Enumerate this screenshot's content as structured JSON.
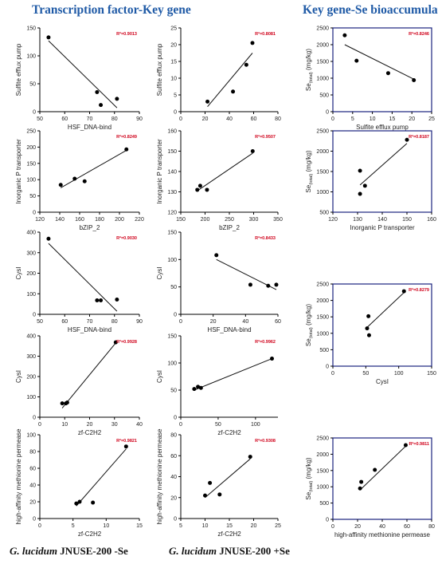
{
  "header": {
    "left_title": "Transcription factor-Key gene",
    "right_title": "Key gene-Se bioaccumulation"
  },
  "footer": {
    "left_species": "G. lucidum",
    "left_strain": "JNUSE-200",
    "left_treatment": "-Se",
    "right_species": "G. lucidum",
    "right_strain": "JNUSE-200",
    "right_treatment": "+Se"
  },
  "colors": {
    "header": "#1f5aa6",
    "r2": "#d0021b",
    "right_frame": "#1a237e",
    "axis": "#000000"
  },
  "chart_data": [
    {
      "id": "r1c1",
      "type": "scatter",
      "r2_text": "R²=0.9013",
      "xlabel": "HSF_DNA-bind",
      "ylabel": "Sulfite efflux pump",
      "xlim": [
        50,
        90
      ],
      "ylim": [
        0,
        150
      ],
      "xticks": [
        50,
        60,
        70,
        80,
        90
      ],
      "yticks": [
        0,
        50,
        100,
        150
      ],
      "x": [
        53.5,
        73,
        74.5,
        81
      ],
      "y": [
        133,
        35,
        12,
        23
      ],
      "fit": [
        [
          53.5,
          127
        ],
        [
          81,
          7
        ]
      ]
    },
    {
      "id": "r1c2",
      "type": "scatter",
      "r2_text": "R²=0.8081",
      "xlabel": "",
      "ylabel": "Sulfite efflux pump",
      "xlim": [
        0,
        80
      ],
      "ylim": [
        0,
        25
      ],
      "xticks": [
        0,
        20,
        40,
        60,
        80
      ],
      "yticks": [
        0,
        5,
        10,
        15,
        20,
        25
      ],
      "x": [
        22,
        43,
        54,
        59
      ],
      "y": [
        3,
        6,
        14,
        20.5
      ],
      "fit": [
        [
          22,
          1.5
        ],
        [
          59,
          17.5
        ]
      ]
    },
    {
      "id": "r1c3",
      "type": "scatter",
      "r2_text": "R²=0.8246",
      "xlabel": "Sulfite efflux pump",
      "ylabel": "Se(total) (mg/kg)",
      "xlim": [
        0,
        25
      ],
      "ylim": [
        0,
        2500
      ],
      "xticks": [
        0,
        5,
        10,
        15,
        20,
        25
      ],
      "yticks": [
        0,
        500,
        1000,
        1500,
        2000,
        2500
      ],
      "x": [
        3,
        6,
        14,
        20.5
      ],
      "y": [
        2280,
        1520,
        1150,
        940
      ],
      "fit": [
        [
          3,
          2000
        ],
        [
          20.5,
          970
        ]
      ]
    },
    {
      "id": "r2c1",
      "type": "scatter",
      "r2_text": "R²=0.8249",
      "xlabel": "bZIP_2",
      "ylabel": "Inorganic P transporter",
      "xlim": [
        120,
        220
      ],
      "ylim": [
        0,
        250
      ],
      "xticks": [
        120,
        140,
        160,
        180,
        200,
        220
      ],
      "yticks": [
        0,
        50,
        100,
        150,
        200,
        250
      ],
      "x": [
        141,
        155,
        165,
        207
      ],
      "y": [
        84,
        103,
        95,
        193
      ],
      "fit": [
        [
          141,
          75
        ],
        [
          207,
          190
        ]
      ]
    },
    {
      "id": "r2c2",
      "type": "scatter",
      "r2_text": "R²=0.9507",
      "xlabel": "bZIP_2",
      "ylabel": "Inorganic P transporter",
      "xlim": [
        150,
        350
      ],
      "ylim": [
        120,
        160
      ],
      "xticks": [
        150,
        200,
        250,
        300,
        350
      ],
      "yticks": [
        120,
        130,
        140,
        150,
        160
      ],
      "x": [
        184,
        190,
        204,
        298
      ],
      "y": [
        131,
        133,
        131,
        150
      ],
      "fit": [
        [
          184,
          130.5
        ],
        [
          298,
          149
        ]
      ]
    },
    {
      "id": "r2c3",
      "type": "scatter",
      "r2_text": "R²=0.8187",
      "xlabel": "Inorganic P transporter",
      "ylabel": "Se(total) (mg/kg)",
      "xlim": [
        120,
        160
      ],
      "ylim": [
        500,
        2500
      ],
      "xticks": [
        120,
        130,
        140,
        150,
        160
      ],
      "yticks": [
        500,
        1000,
        1500,
        2000,
        2500
      ],
      "x": [
        131,
        131,
        133,
        150
      ],
      "y": [
        1520,
        950,
        1150,
        2280
      ],
      "fit": [
        [
          131,
          1170
        ],
        [
          150,
          2190
        ]
      ]
    },
    {
      "id": "r3c1",
      "type": "scatter",
      "r2_text": "R²=0.9030",
      "xlabel": "HSF_DNA-bind",
      "ylabel": "CysI",
      "xlim": [
        50,
        90
      ],
      "ylim": [
        0,
        400
      ],
      "xticks": [
        50,
        60,
        70,
        80,
        90
      ],
      "yticks": [
        0,
        100,
        200,
        300,
        400
      ],
      "x": [
        53.5,
        73,
        74.5,
        81
      ],
      "y": [
        368,
        68,
        68,
        72
      ],
      "fit": [
        [
          53.5,
          345
        ],
        [
          81,
          15
        ]
      ]
    },
    {
      "id": "r3c2",
      "type": "scatter",
      "r2_text": "R²=0.8433",
      "xlabel": "HSF_DNA-bind",
      "ylabel": "CysI",
      "xlim": [
        0,
        60
      ],
      "ylim": [
        0,
        150
      ],
      "xticks": [
        0,
        20,
        40,
        60
      ],
      "yticks": [
        0,
        50,
        100,
        150
      ],
      "x": [
        22,
        43,
        54,
        59
      ],
      "y": [
        108,
        54,
        52,
        54
      ],
      "fit": [
        [
          22,
          100
        ],
        [
          59,
          45
        ]
      ]
    },
    {
      "id": "r3c3",
      "type": "scatter",
      "r2_text": "R²=0.8279",
      "xlabel": "CysI",
      "ylabel": "Se(total) (mg/kg)",
      "xlim": [
        0,
        150
      ],
      "ylim": [
        0,
        2500
      ],
      "xticks": [
        0,
        50,
        100,
        150
      ],
      "yticks": [
        0,
        500,
        1000,
        1500,
        2000,
        2500
      ],
      "x": [
        52,
        54,
        55,
        108
      ],
      "y": [
        1150,
        1520,
        940,
        2280
      ],
      "fit": [
        [
          52,
          1180
        ],
        [
          108,
          2240
        ]
      ]
    },
    {
      "id": "r4c1",
      "type": "scatter",
      "r2_text": "R²=0.9928",
      "xlabel": "zf-C2H2",
      "ylabel": "CysI",
      "xlim": [
        0,
        40
      ],
      "ylim": [
        0,
        400
      ],
      "xticks": [
        0,
        10,
        20,
        30,
        40
      ],
      "yticks": [
        0,
        100,
        200,
        300,
        400
      ],
      "x": [
        9,
        10.5,
        11,
        30.5
      ],
      "y": [
        68,
        68,
        72,
        368
      ],
      "fit": [
        [
          9,
          45
        ],
        [
          30.5,
          365
        ]
      ]
    },
    {
      "id": "r4c2",
      "type": "scatter",
      "r2_text": "R²=0.9962",
      "xlabel": "zf-C2H2",
      "ylabel": "CysI",
      "xlim": [
        0,
        130
      ],
      "ylim": [
        0,
        150
      ],
      "xticks": [
        0,
        50,
        100
      ],
      "yticks": [
        0,
        50,
        100,
        150
      ],
      "x": [
        18,
        23,
        27,
        122
      ],
      "y": [
        52,
        56,
        54,
        108
      ],
      "fit": [
        [
          18,
          50
        ],
        [
          122,
          108
        ]
      ]
    },
    {
      "id": "r5c1",
      "type": "scatter",
      "r2_text": "R²=0.9821",
      "xlabel": "zf-C2H2",
      "ylabel": "high-affinity methionine permease",
      "xlim": [
        0,
        15
      ],
      "ylim": [
        0,
        100
      ],
      "xticks": [
        0,
        5,
        10,
        15
      ],
      "yticks": [
        0,
        20,
        40,
        60,
        80,
        100
      ],
      "x": [
        5.5,
        6,
        8,
        13
      ],
      "y": [
        18,
        20,
        19,
        86
      ],
      "fit": [
        [
          5.5,
          15
        ],
        [
          13,
          83
        ]
      ]
    },
    {
      "id": "r5c2",
      "type": "scatter",
      "r2_text": "R²=0.9308",
      "xlabel": "zf-C2H2",
      "ylabel": "high-affinity methionine permease",
      "xlim": [
        5,
        25
      ],
      "ylim": [
        0,
        80
      ],
      "xticks": [
        5,
        10,
        15,
        20,
        25
      ],
      "yticks": [
        0,
        20,
        40,
        60,
        80
      ],
      "x": [
        10,
        11,
        13,
        19.3
      ],
      "y": [
        22,
        34,
        23,
        59
      ],
      "fit": [
        [
          10,
          20
        ],
        [
          19.3,
          57
        ]
      ]
    },
    {
      "id": "r5c3",
      "type": "scatter",
      "r2_text": "R²=0.9811",
      "xlabel": "high-affinity methionine permease",
      "ylabel": "Se(total) (mg/kg)",
      "xlim": [
        0,
        80
      ],
      "ylim": [
        0,
        2500
      ],
      "xticks": [
        0,
        20,
        40,
        60,
        80
      ],
      "yticks": [
        0,
        500,
        1000,
        1500,
        2000,
        2500
      ],
      "x": [
        22,
        23,
        34,
        59
      ],
      "y": [
        950,
        1150,
        1520,
        2280
      ],
      "fit": [
        [
          22,
          900
        ],
        [
          59,
          2250
        ]
      ]
    }
  ]
}
